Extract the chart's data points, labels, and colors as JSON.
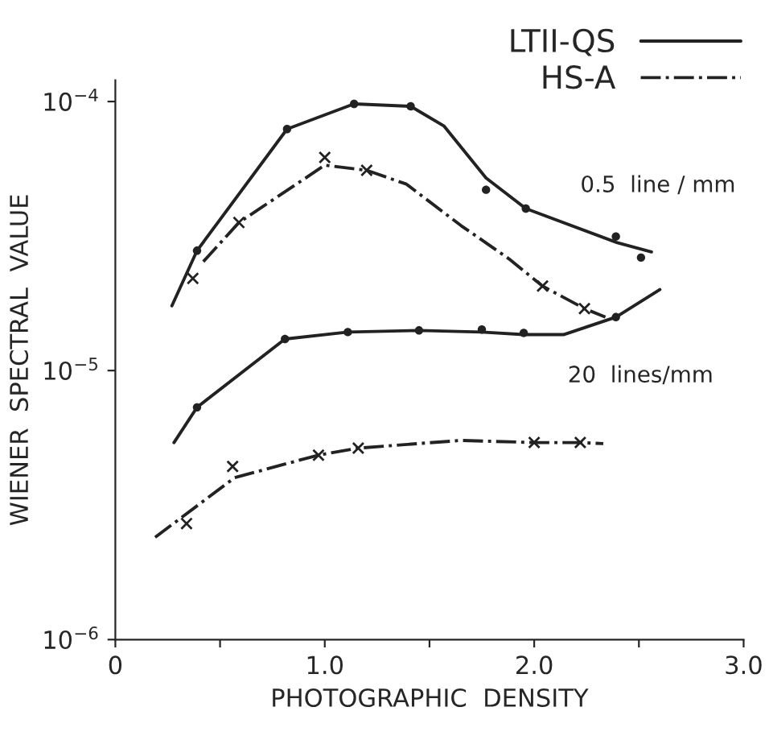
{
  "chart_data": {
    "type": "line",
    "xlabel": "PHOTOGRAPHIC  DENSITY",
    "ylabel": "WIENER  SPECTRAL  VALUE",
    "log": "y",
    "grid": false,
    "legend": "top right",
    "marker": "none",
    "xlim": [
      0,
      3.0
    ],
    "xticks": [
      {
        "value": 0,
        "label": "0"
      },
      {
        "value": 0.5,
        "label": null
      },
      {
        "value": 1.0,
        "label": "1.0"
      },
      {
        "value": 1.5,
        "label": null
      },
      {
        "value": 2.0,
        "label": "2.0"
      },
      {
        "value": 2.5,
        "label": null
      },
      {
        "value": 3.0,
        "label": "3.0"
      }
    ],
    "ylim": [
      1e-06,
      0.00012
    ],
    "yticks": [
      {
        "value": 1e-06,
        "label": "10$^{−6}$"
      },
      {
        "value": 1e-05,
        "label": "10$^{−5}$"
      },
      {
        "value": 0.0001,
        "label": "10$^{−4}$"
      }
    ],
    "annotations": [
      "0.5  line / mm",
      "20  lines/mm"
    ],
    "series": [
      {
        "name": "LTII-QS",
        "color": "#222222",
        "line_style": "solid",
        "x": [
          0.27,
          0.39,
          0.82,
          1.14,
          1.41,
          1.57,
          1.77,
          1.96,
          2.39,
          2.56
        ],
        "values": [
          1.74e-05,
          2.79e-05,
          7.9e-05,
          9.8e-05,
          9.6e-05,
          8.1e-05,
          5.2e-05,
          4e-05,
          3e-05,
          2.76e-05
        ]
      },
      {
        "name": "HS-A",
        "color": "#222222",
        "line_style": "dashdot",
        "x": [
          0.42,
          0.59,
          1.0,
          1.2,
          1.39,
          1.65,
          1.88,
          2.04,
          2.24,
          2.34
        ],
        "values": [
          2.54e-05,
          3.55e-05,
          5.8e-05,
          5.55e-05,
          4.93e-05,
          3.46e-05,
          2.6e-05,
          2.06e-05,
          1.7e-05,
          1.58e-05
        ]
      },
      {
        "color": "#222222",
        "line_style": "solid",
        "x": [
          0.28,
          0.39,
          0.81,
          1.11,
          1.45,
          1.75,
          1.95,
          2.14,
          2.39,
          2.6
        ],
        "values": [
          5.4e-06,
          7.3e-06,
          1.31e-05,
          1.39e-05,
          1.41e-05,
          1.39e-05,
          1.36e-05,
          1.36e-05,
          1.58e-05,
          2e-05
        ]
      },
      {
        "color": "#222222",
        "line_style": "dashdot",
        "x": [
          0.19,
          0.57,
          0.97,
          1.16,
          1.65,
          2.0,
          2.22,
          2.33
        ],
        "values": [
          2.4e-06,
          4e-06,
          4.85e-06,
          5.15e-06,
          5.5e-06,
          5.4e-06,
          5.4e-06,
          5.35e-06
        ]
      },
      {
        "type": "scatter",
        "marker": "circle",
        "color": "#222222",
        "x": [
          0.39,
          0.82,
          1.14,
          1.41,
          1.77,
          1.96,
          2.39,
          2.51
        ],
        "values": [
          2.79e-05,
          7.9e-05,
          9.8e-05,
          9.6e-05,
          4.7e-05,
          4e-05,
          3.15e-05,
          2.63e-05
        ]
      },
      {
        "type": "scatter",
        "marker": "cross",
        "color": "#222222",
        "x": [
          0.37,
          0.59,
          1.0,
          1.2,
          2.04,
          2.24
        ],
        "values": [
          2.2e-05,
          3.55e-05,
          6.2e-05,
          5.55e-05,
          2.06e-05,
          1.7e-05
        ]
      },
      {
        "type": "scatter",
        "marker": "circle",
        "color": "#222222",
        "x": [
          0.39,
          0.81,
          1.11,
          1.45,
          1.75,
          1.95,
          2.39
        ],
        "values": [
          7.3e-06,
          1.31e-05,
          1.39e-05,
          1.41e-05,
          1.42e-05,
          1.38e-05,
          1.58e-05
        ]
      },
      {
        "type": "scatter",
        "marker": "cross",
        "color": "#222222",
        "x": [
          0.34,
          0.56,
          0.97,
          1.16,
          2.0,
          2.22
        ],
        "values": [
          2.7e-06,
          4.4e-06,
          4.85e-06,
          5.15e-06,
          5.4e-06,
          5.4e-06
        ]
      }
    ]
  }
}
